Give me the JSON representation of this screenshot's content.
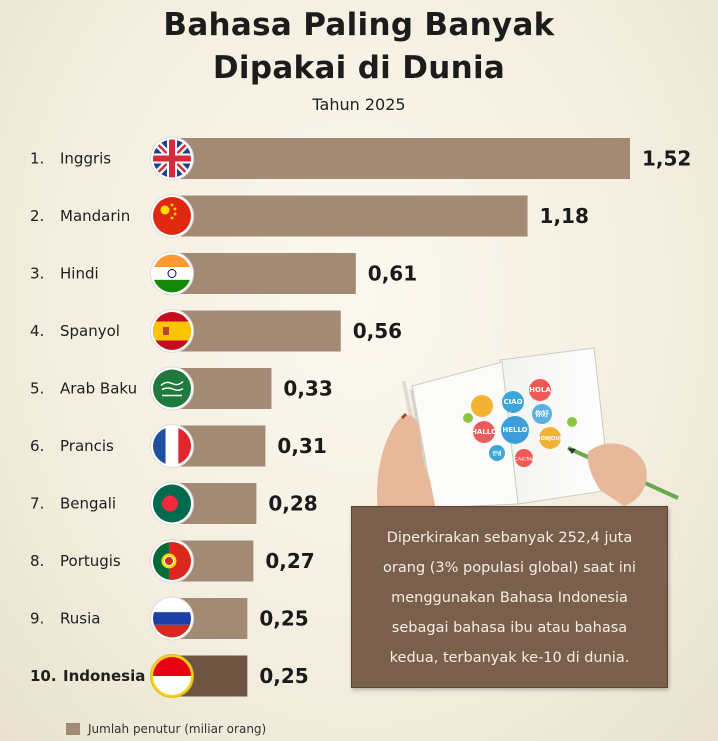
{
  "header": {
    "title_line1": "Bahasa Paling Banyak",
    "title_line2": "Dipakai di Dunia",
    "subtitle": "Tahun 2025"
  },
  "colors": {
    "bar": "#a38a74",
    "bar_highlight": "#6e5442",
    "note_bg": "#7a5f4c"
  },
  "chart_data": {
    "type": "bar",
    "orientation": "horizontal",
    "title": "Bahasa Paling Banyak Dipakai di Dunia",
    "subtitle": "Tahun 2025",
    "categories": [
      "Inggris",
      "Mandarin",
      "Hindi",
      "Spanyol",
      "Arab Baku",
      "Prancis",
      "Bengali",
      "Portugis",
      "Rusia",
      "Indonesia"
    ],
    "ranks": [
      "1.",
      "2.",
      "3.",
      "4.",
      "5.",
      "6.",
      "7.",
      "8.",
      "9.",
      "10."
    ],
    "values": [
      1.52,
      1.18,
      0.61,
      0.56,
      0.33,
      0.31,
      0.28,
      0.27,
      0.25,
      0.25
    ],
    "value_labels": [
      "1,52",
      "1,18",
      "0,61",
      "0,56",
      "0,33",
      "0,31",
      "0,28",
      "0,27",
      "0,25",
      "0,25"
    ],
    "flags": [
      "uk-flag-icon",
      "china-flag-icon",
      "india-flag-icon",
      "spain-flag-icon",
      "saudi-arabia-flag-icon",
      "france-flag-icon",
      "bangladesh-flag-icon",
      "portugal-flag-icon",
      "russia-flag-icon",
      "indonesia-flag-icon"
    ],
    "highlight_category": "Indonesia",
    "legend": "Jumlah penutur (miliar orang)",
    "grid": false
  },
  "note": {
    "text": "Diperkirakan sebanyak 252,4 juta orang (3% populasi global) saat ini menggunakan Bahasa Indonesia sebagai bahasa ibu atau bahasa kedua, terbanyak ke-10 di dunia."
  },
  "illustration": {
    "speech_bubbles": [
      "CIAO",
      "HOLA",
      "HALLO",
      "HELLO",
      "你好",
      "BONJOUR",
      "안녕",
      "こんにちは"
    ]
  }
}
